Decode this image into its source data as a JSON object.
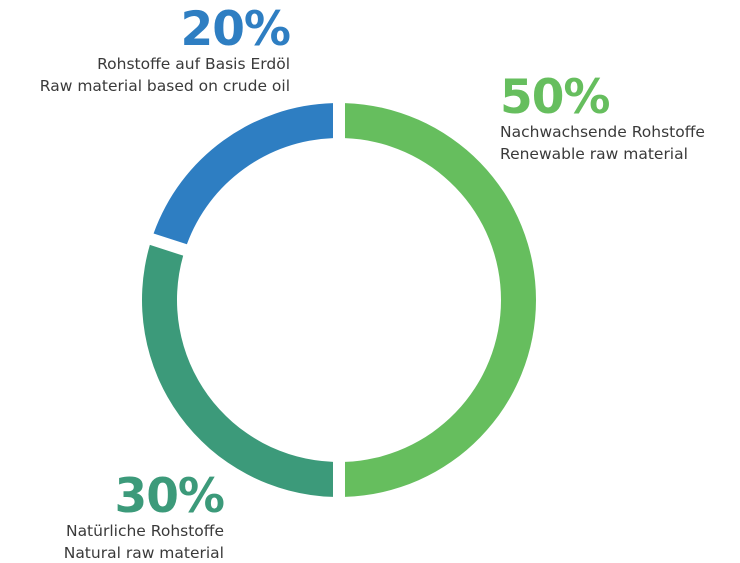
{
  "chart_data": {
    "type": "pie",
    "donut": true,
    "slices": [
      {
        "value": 50,
        "percent_label": "50%",
        "label_de": "Nachwachsende Rohstoffe",
        "label_en": "Renewable raw material",
        "color": "#66BE5E"
      },
      {
        "value": 30,
        "percent_label": "30%",
        "label_de": "Natürliche Rohstoffe",
        "label_en": "Natural raw material",
        "color": "#3C9A7A"
      },
      {
        "value": 20,
        "percent_label": "20%",
        "label_de": "Rohstoffe auf Basis Erdöl",
        "label_en": "Raw material based on crude oil",
        "color": "#2E7EC2"
      }
    ]
  }
}
